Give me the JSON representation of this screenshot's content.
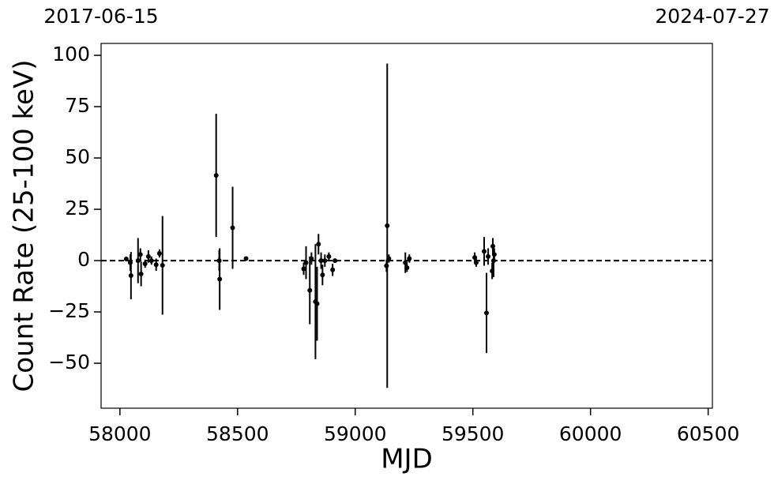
{
  "chart_data": {
    "type": "errorbar",
    "xlabel": "MJD",
    "ylabel": "Count Rate (25-100 keV)",
    "x": [
      58027,
      58044,
      58047,
      58077,
      58087,
      58090,
      58107,
      58121,
      58134,
      58154,
      58168,
      58181,
      58409,
      58422,
      58424,
      58479,
      58536,
      58781,
      58791,
      58807,
      58814,
      58831,
      58838,
      58844,
      58855,
      58861,
      58871,
      58888,
      58904,
      58914,
      59133,
      59136,
      59143,
      59213,
      59220,
      59230,
      59508,
      59514,
      59548,
      59558,
      59565,
      59582,
      59585,
      59588,
      59591
    ],
    "values": [
      0.8,
      -1,
      -7.3,
      0,
      3,
      -6.5,
      -1.5,
      2,
      0,
      -2,
      3.5,
      -2.3,
      41.5,
      0,
      -9,
      16,
      1,
      -4,
      -1,
      -14.5,
      1,
      -20,
      -21,
      8,
      0,
      -7,
      0,
      2,
      -4.5,
      0,
      -2.5,
      17,
      1,
      -1,
      -3.5,
      1,
      1.5,
      -1,
      4.5,
      -25.5,
      2,
      -5,
      7,
      0,
      3
    ],
    "errors": [
      1,
      4,
      11.5,
      11,
      3,
      6,
      2,
      3,
      2,
      3,
      2,
      24,
      30,
      5,
      15,
      20,
      1,
      3,
      8,
      16.5,
      3,
      28,
      18,
      5,
      4,
      5,
      3,
      2,
      3,
      1,
      3,
      79,
      2,
      5,
      2,
      2,
      2.5,
      2,
      7,
      19.5,
      4,
      4,
      4,
      8,
      3
    ],
    "color": "#000000",
    "hline": 0,
    "xlim": [
      57920,
      60518
    ],
    "ylim": [
      -71.9,
      105.8
    ],
    "xticks": [
      58000,
      58500,
      59000,
      59500,
      60000,
      60500
    ],
    "yticks": [
      {
        "value": -50,
        "label": "−50"
      },
      {
        "value": -25,
        "label": "−25"
      },
      0,
      25,
      50,
      75,
      100
    ],
    "x2ticks": [
      {
        "value": 57920,
        "label": "2017-06-15"
      },
      {
        "value": 60518,
        "label": "2024-07-27"
      }
    ]
  }
}
